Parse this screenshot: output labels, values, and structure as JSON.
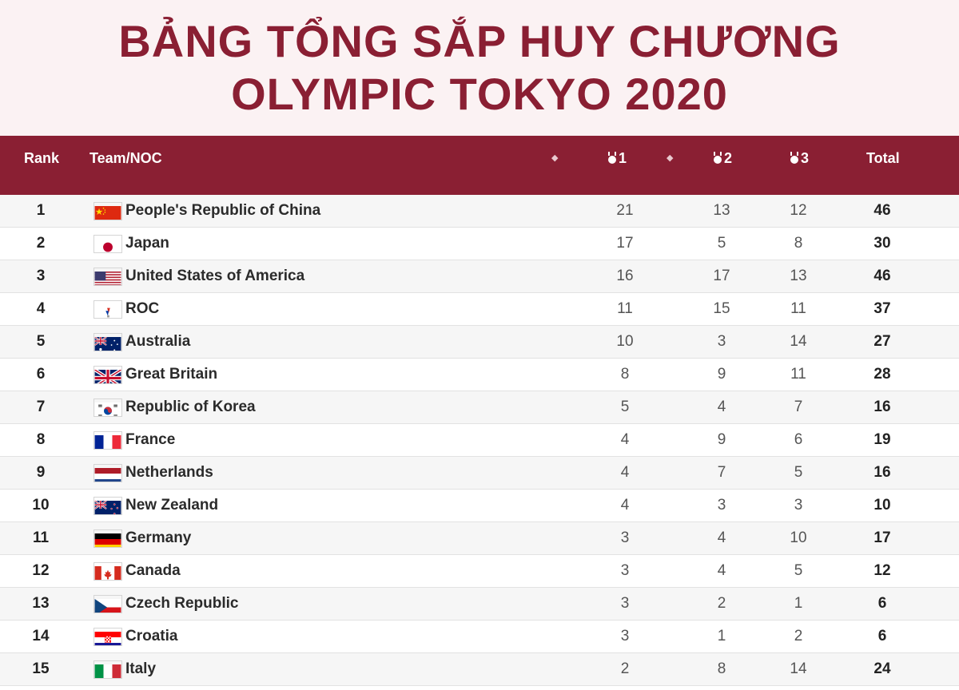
{
  "title": {
    "line1": "BẢNG TỔNG SẮP HUY CHƯƠNG",
    "line2": "OLYMPIC TOKYO 2020"
  },
  "columns": {
    "rank": "Rank",
    "team": "Team/NOC",
    "gold": "1",
    "silver": "2",
    "bronze": "3",
    "total": "Total"
  },
  "icons": {
    "sort": "sort-icon",
    "medal": "medal-icon"
  },
  "colors": {
    "brand": "#8a1f33",
    "banner_bg": "#fbf2f3"
  },
  "rows": [
    {
      "rank": "1",
      "country": "People's Republic of China",
      "flag": "china",
      "gold": "21",
      "silver": "13",
      "bronze": "12",
      "total": "46"
    },
    {
      "rank": "2",
      "country": "Japan",
      "flag": "japan",
      "gold": "17",
      "silver": "5",
      "bronze": "8",
      "total": "30"
    },
    {
      "rank": "3",
      "country": "United States of America",
      "flag": "usa",
      "gold": "16",
      "silver": "17",
      "bronze": "13",
      "total": "46"
    },
    {
      "rank": "4",
      "country": "ROC",
      "flag": "roc",
      "gold": "11",
      "silver": "15",
      "bronze": "11",
      "total": "37"
    },
    {
      "rank": "5",
      "country": "Australia",
      "flag": "australia",
      "gold": "10",
      "silver": "3",
      "bronze": "14",
      "total": "27"
    },
    {
      "rank": "6",
      "country": "Great Britain",
      "flag": "great-britain",
      "gold": "8",
      "silver": "9",
      "bronze": "11",
      "total": "28"
    },
    {
      "rank": "7",
      "country": "Republic of Korea",
      "flag": "korea",
      "gold": "5",
      "silver": "4",
      "bronze": "7",
      "total": "16"
    },
    {
      "rank": "8",
      "country": "France",
      "flag": "france",
      "gold": "4",
      "silver": "9",
      "bronze": "6",
      "total": "19"
    },
    {
      "rank": "9",
      "country": "Netherlands",
      "flag": "netherlands",
      "gold": "4",
      "silver": "7",
      "bronze": "5",
      "total": "16"
    },
    {
      "rank": "10",
      "country": "New Zealand",
      "flag": "new-zealand",
      "gold": "4",
      "silver": "3",
      "bronze": "3",
      "total": "10"
    },
    {
      "rank": "11",
      "country": "Germany",
      "flag": "germany",
      "gold": "3",
      "silver": "4",
      "bronze": "10",
      "total": "17"
    },
    {
      "rank": "12",
      "country": "Canada",
      "flag": "canada",
      "gold": "3",
      "silver": "4",
      "bronze": "5",
      "total": "12"
    },
    {
      "rank": "13",
      "country": "Czech Republic",
      "flag": "czech-republic",
      "gold": "3",
      "silver": "2",
      "bronze": "1",
      "total": "6"
    },
    {
      "rank": "14",
      "country": "Croatia",
      "flag": "croatia",
      "gold": "3",
      "silver": "1",
      "bronze": "2",
      "total": "6"
    },
    {
      "rank": "15",
      "country": "Italy",
      "flag": "italy",
      "gold": "2",
      "silver": "8",
      "bronze": "14",
      "total": "24"
    }
  ]
}
